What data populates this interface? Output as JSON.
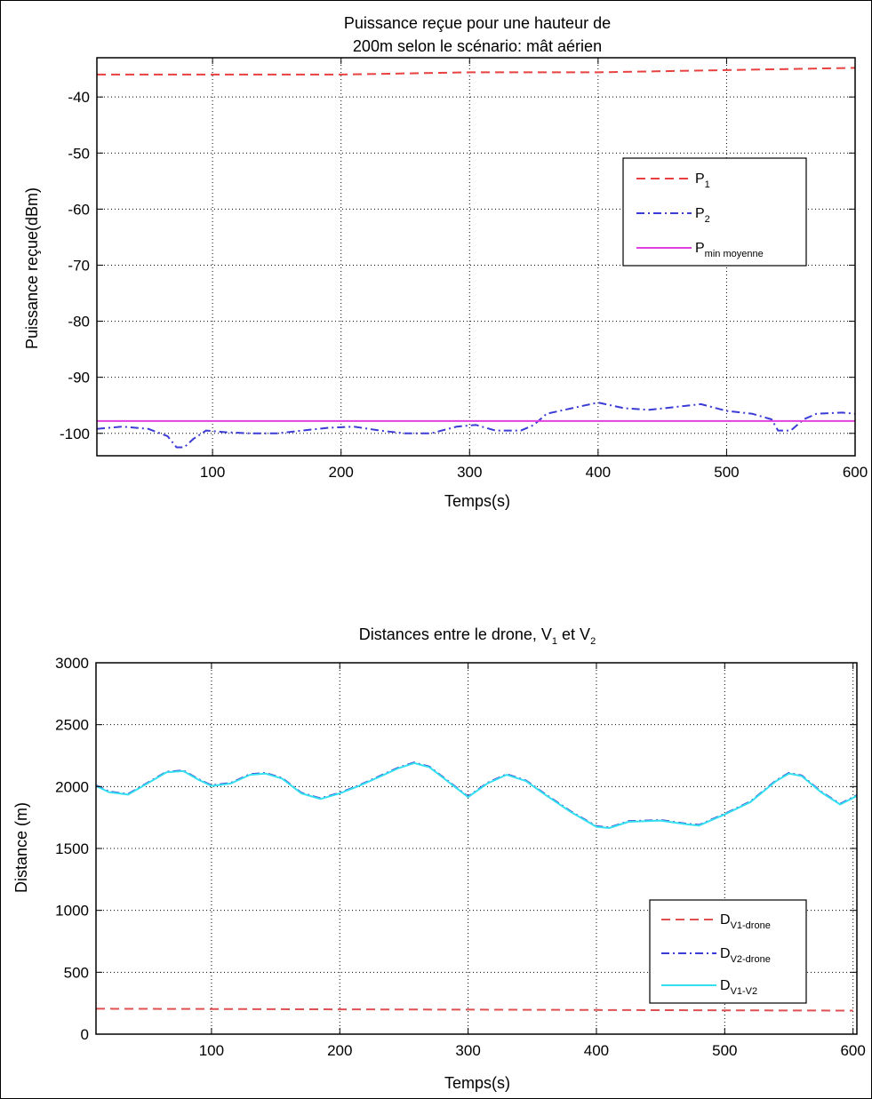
{
  "chart_data": [
    {
      "type": "line",
      "title_lines": [
        "Puissance reçue pour une hauteur de",
        "200m selon le scénario: mât aérien"
      ],
      "xlabel": "Temps(s)",
      "ylabel": "Puissance reçue(dBm)",
      "xlim": [
        10,
        600
      ],
      "ylim": [
        -104,
        -33
      ],
      "xticks": [
        100,
        200,
        300,
        400,
        500,
        600
      ],
      "yticks": [
        -40,
        -50,
        -60,
        -70,
        -80,
        -90,
        -100
      ],
      "grid": true,
      "legend_position": "right",
      "series": [
        {
          "name": "P",
          "name_sub": "1",
          "color": "#e8413f",
          "dash": "dashed",
          "x": [
            10,
            100,
            200,
            300,
            400,
            500,
            600
          ],
          "y": [
            -36,
            -36,
            -36,
            -35.6,
            -35.6,
            -35.2,
            -34.8
          ]
        },
        {
          "name": "P",
          "name_sub": "2",
          "color": "#3b3bd6",
          "dash": "dashdot",
          "x": [
            10,
            30,
            50,
            65,
            72,
            78,
            85,
            95,
            110,
            130,
            150,
            170,
            190,
            210,
            230,
            250,
            270,
            290,
            305,
            320,
            340,
            350,
            360,
            370,
            380,
            390,
            400,
            410,
            420,
            440,
            460,
            480,
            500,
            520,
            535,
            540,
            550,
            560,
            570,
            590,
            600
          ],
          "y": [
            -99.2,
            -98.8,
            -99.2,
            -100.5,
            -102.5,
            -102.5,
            -101,
            -99.5,
            -99.8,
            -100,
            -100,
            -99.5,
            -99,
            -98.8,
            -99.5,
            -100,
            -100,
            -98.8,
            -98.5,
            -99.5,
            -99.5,
            -98.5,
            -96.5,
            -96,
            -95.5,
            -95,
            -94.5,
            -95,
            -95.5,
            -95.8,
            -95.3,
            -94.8,
            -96,
            -96.5,
            -97.5,
            -99.5,
            -99.5,
            -97.5,
            -96.5,
            -96.3,
            -96.5
          ]
        },
        {
          "name": "P",
          "name_sub": "min moyenne",
          "color": "#e040e0",
          "dash": "solid",
          "x": [
            10,
            600
          ],
          "y": [
            -97.8,
            -97.8
          ]
        }
      ]
    },
    {
      "type": "line",
      "title_parts": [
        "Distances entre le drone, V",
        "1",
        " et V",
        "2"
      ],
      "xlabel": "Temps(s)",
      "ylabel": "Distance (m)",
      "xlim": [
        10,
        603
      ],
      "ylim": [
        0,
        3000
      ],
      "xticks": [
        100,
        200,
        300,
        400,
        500,
        600
      ],
      "yticks": [
        0,
        500,
        1000,
        1500,
        2000,
        2500,
        3000
      ],
      "grid": true,
      "legend_position": "bottom-right",
      "series": [
        {
          "name": "D",
          "name_sub": "V1-drone",
          "color": "#e05050",
          "dash": "dashed",
          "x": [
            10,
            100,
            200,
            300,
            400,
            500,
            600
          ],
          "y": [
            205,
            203,
            200,
            198,
            195,
            192,
            190
          ]
        },
        {
          "name": "D",
          "name_sub": "V2-drone",
          "color": "#3b3bd6",
          "dash": "dashdot",
          "x": [
            10,
            20,
            35,
            50,
            65,
            78,
            90,
            100,
            115,
            130,
            142,
            155,
            170,
            185,
            200,
            215,
            230,
            245,
            258,
            270,
            285,
            300,
            315,
            330,
            345,
            360,
            380,
            400,
            410,
            425,
            450,
            470,
            480,
            500,
            520,
            540,
            550,
            560,
            575,
            590,
            603
          ],
          "y": [
            2010,
            1960,
            1940,
            2030,
            2120,
            2130,
            2060,
            2010,
            2030,
            2100,
            2110,
            2070,
            1950,
            1905,
            1950,
            2010,
            2080,
            2150,
            2195,
            2160,
            2040,
            1920,
            2030,
            2100,
            2050,
            1940,
            1800,
            1680,
            1670,
            1720,
            1730,
            1700,
            1690,
            1780,
            1880,
            2050,
            2110,
            2090,
            1960,
            1860,
            1930
          ]
        },
        {
          "name": "D",
          "name_sub": "V1-V2",
          "color": "#33e0f0",
          "dash": "solid",
          "x": [
            10,
            20,
            35,
            50,
            65,
            78,
            90,
            100,
            115,
            130,
            142,
            155,
            170,
            185,
            200,
            215,
            230,
            245,
            258,
            270,
            285,
            300,
            315,
            330,
            345,
            360,
            380,
            400,
            410,
            425,
            450,
            470,
            480,
            500,
            520,
            540,
            550,
            560,
            575,
            590,
            603
          ],
          "y": [
            2005,
            1955,
            1935,
            2025,
            2115,
            2125,
            2055,
            2005,
            2025,
            2095,
            2105,
            2065,
            1945,
            1900,
            1945,
            2005,
            2075,
            2145,
            2190,
            2155,
            2035,
            1915,
            2025,
            2095,
            2045,
            1935,
            1795,
            1675,
            1665,
            1715,
            1725,
            1695,
            1685,
            1775,
            1875,
            2045,
            2105,
            2085,
            1955,
            1855,
            1925
          ]
        }
      ]
    }
  ]
}
